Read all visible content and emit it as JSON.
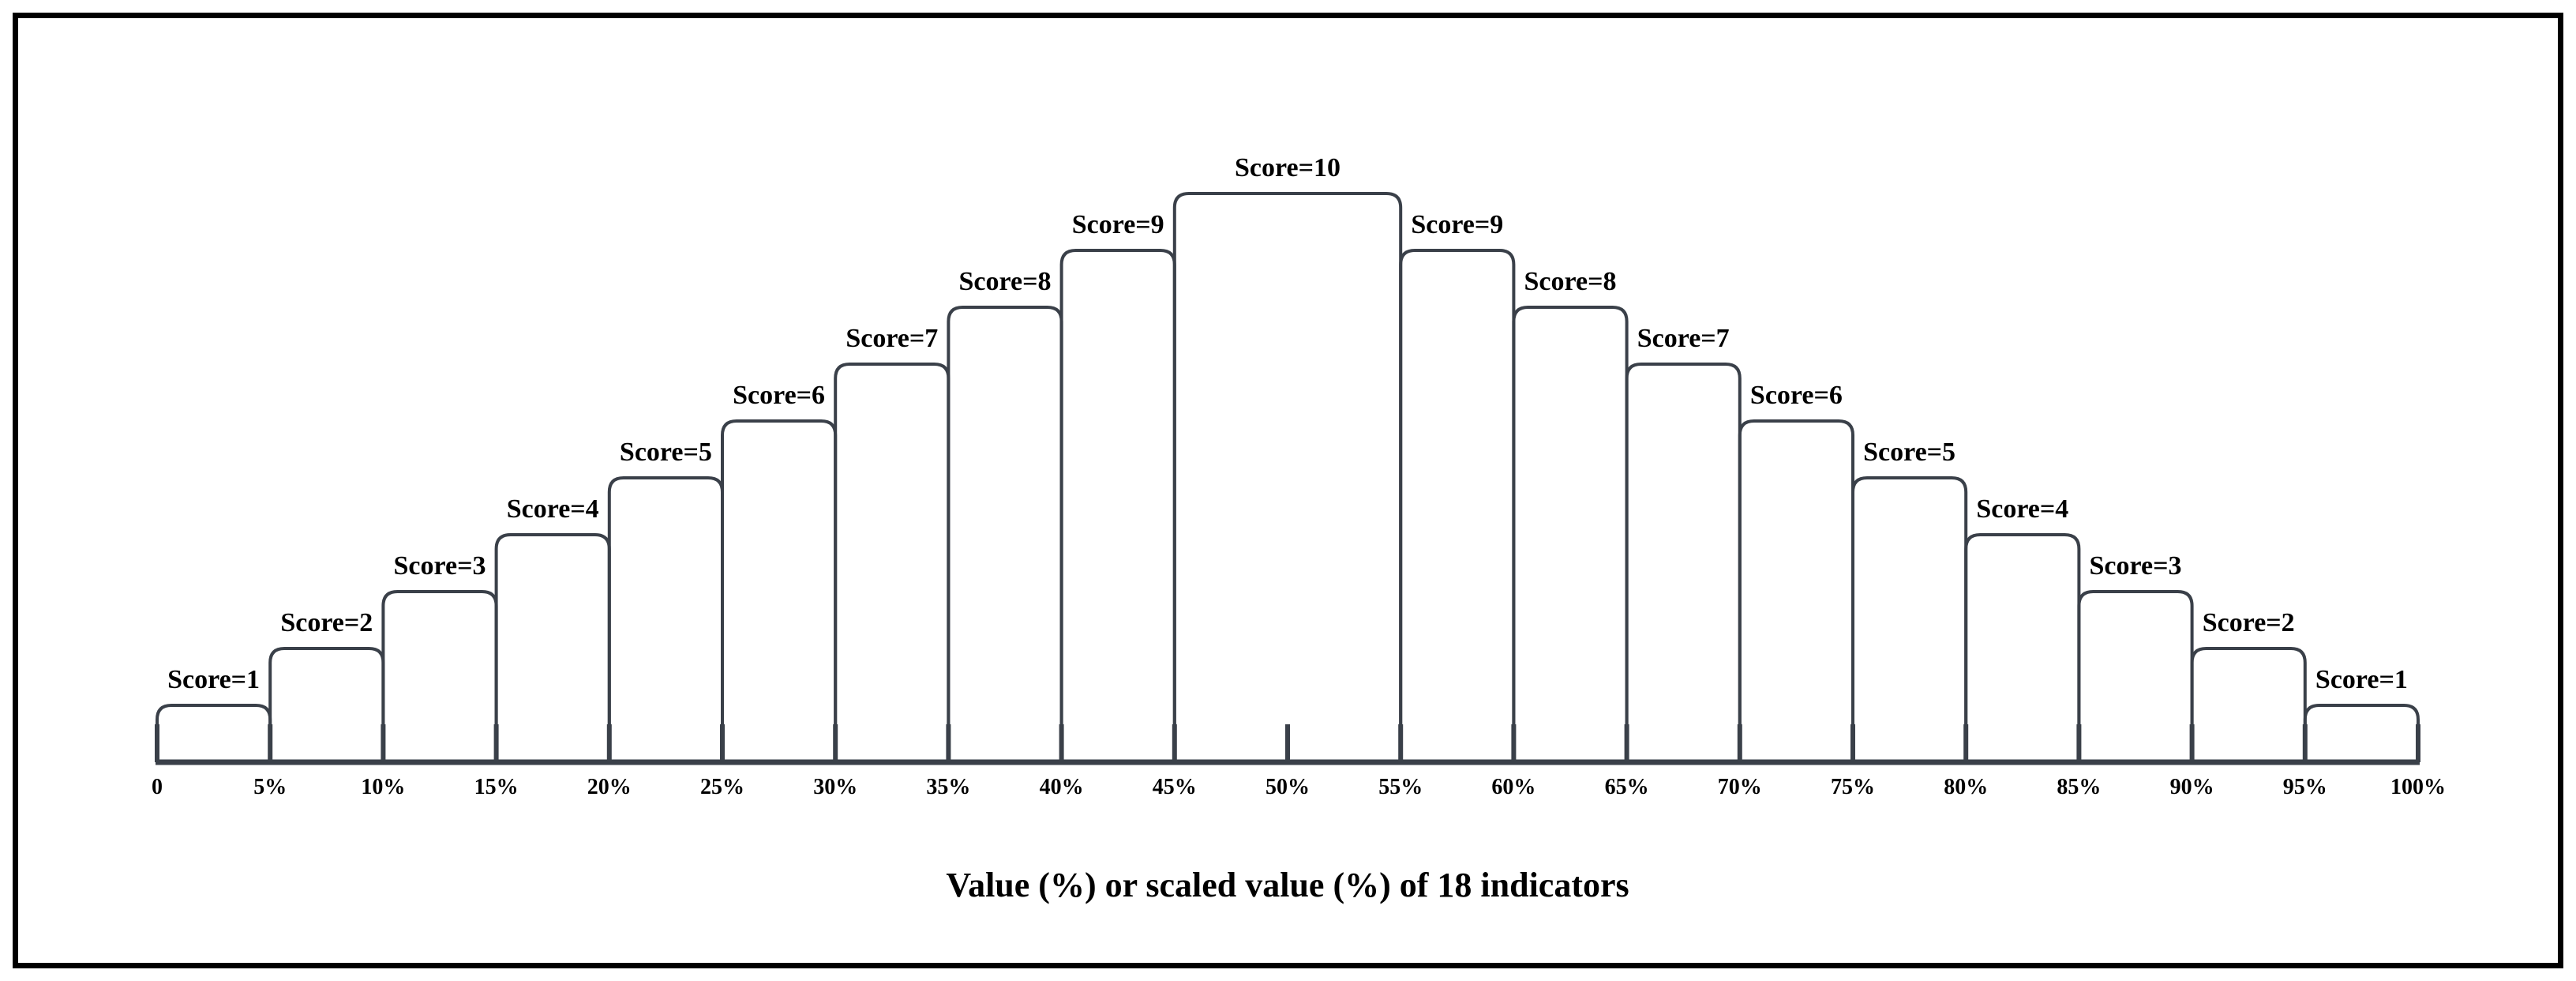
{
  "chart_data": {
    "type": "bar",
    "xlabel": "Value (%) or scaled value (%) of 18 indicators",
    "ylabel": "",
    "xlim": [
      0,
      100
    ],
    "ylim": [
      0,
      10
    ],
    "grid": false,
    "tick_values": [
      0,
      5,
      10,
      15,
      20,
      25,
      30,
      35,
      40,
      45,
      50,
      55,
      60,
      65,
      70,
      75,
      80,
      85,
      90,
      95,
      100
    ],
    "tick_labels": [
      "0",
      "5%",
      "10%",
      "15%",
      "20%",
      "25%",
      "30%",
      "35%",
      "40%",
      "45%",
      "50%",
      "55%",
      "60%",
      "65%",
      "70%",
      "75%",
      "80%",
      "85%",
      "90%",
      "95%",
      "100%"
    ],
    "bins": [
      {
        "from": 0,
        "to": 5,
        "score": 1,
        "label": "Score=1"
      },
      {
        "from": 5,
        "to": 10,
        "score": 2,
        "label": "Score=2"
      },
      {
        "from": 10,
        "to": 15,
        "score": 3,
        "label": "Score=3"
      },
      {
        "from": 15,
        "to": 20,
        "score": 4,
        "label": "Score=4"
      },
      {
        "from": 20,
        "to": 25,
        "score": 5,
        "label": "Score=5"
      },
      {
        "from": 25,
        "to": 30,
        "score": 6,
        "label": "Score=6"
      },
      {
        "from": 30,
        "to": 35,
        "score": 7,
        "label": "Score=7"
      },
      {
        "from": 35,
        "to": 40,
        "score": 8,
        "label": "Score=8"
      },
      {
        "from": 40,
        "to": 45,
        "score": 9,
        "label": "Score=9"
      },
      {
        "from": 45,
        "to": 55,
        "score": 10,
        "label": "Score=10"
      },
      {
        "from": 55,
        "to": 60,
        "score": 9,
        "label": "Score=9"
      },
      {
        "from": 60,
        "to": 65,
        "score": 8,
        "label": "Score=8"
      },
      {
        "from": 65,
        "to": 70,
        "score": 7,
        "label": "Score=7"
      },
      {
        "from": 70,
        "to": 75,
        "score": 6,
        "label": "Score=6"
      },
      {
        "from": 75,
        "to": 80,
        "score": 5,
        "label": "Score=5"
      },
      {
        "from": 80,
        "to": 85,
        "score": 4,
        "label": "Score=4"
      },
      {
        "from": 85,
        "to": 90,
        "score": 3,
        "label": "Score=3"
      },
      {
        "from": 90,
        "to": 95,
        "score": 2,
        "label": "Score=2"
      },
      {
        "from": 95,
        "to": 100,
        "score": 1,
        "label": "Score=1"
      }
    ]
  }
}
